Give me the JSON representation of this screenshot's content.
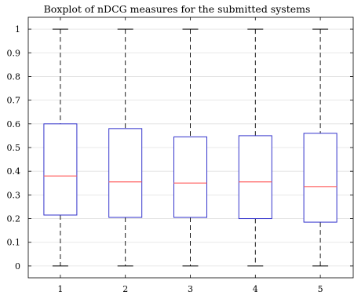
{
  "chart_data": {
    "type": "box",
    "title": "Boxplot of nDCG measures for the submitted systems",
    "xlabel": "",
    "ylabel": "",
    "categories": [
      "1",
      "2",
      "3",
      "4",
      "5"
    ],
    "ylim": [
      -0.05,
      1.05
    ],
    "yticks": [
      "0",
      "0.1",
      "0.2",
      "0.3",
      "0.4",
      "0.5",
      "0.6",
      "0.7",
      "0.8",
      "0.9",
      "1"
    ],
    "grid": true,
    "boxes": [
      {
        "label": "1",
        "min": 0,
        "q1": 0.215,
        "median": 0.38,
        "q3": 0.6,
        "max": 1
      },
      {
        "label": "2",
        "min": 0,
        "q1": 0.205,
        "median": 0.355,
        "q3": 0.58,
        "max": 1
      },
      {
        "label": "3",
        "min": 0,
        "q1": 0.205,
        "median": 0.35,
        "q3": 0.545,
        "max": 1
      },
      {
        "label": "4",
        "min": 0,
        "q1": 0.2,
        "median": 0.355,
        "q3": 0.55,
        "max": 1
      },
      {
        "label": "5",
        "min": 0,
        "q1": 0.185,
        "median": 0.335,
        "q3": 0.56,
        "max": 1
      }
    ],
    "colors": {
      "box": "#3333cc",
      "median": "#ff6666",
      "whisker": "#000000",
      "grid": "#e0e0e0",
      "axis": "#000000"
    }
  }
}
